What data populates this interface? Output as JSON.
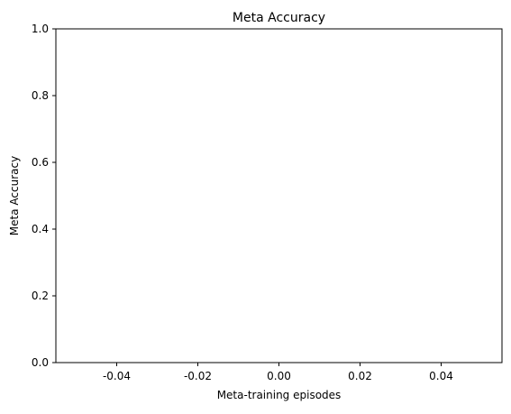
{
  "chart_data": {
    "type": "line",
    "title": "Meta Accuracy",
    "xlabel": "Meta-training episodes",
    "ylabel": "Meta Accuracy",
    "xlim": [
      -0.055,
      0.055
    ],
    "ylim": [
      0.0,
      1.0
    ],
    "xticks": [
      "-0.04",
      "-0.02",
      "0.00",
      "0.02",
      "0.04"
    ],
    "xtick_values": [
      -0.04,
      -0.02,
      0.0,
      0.02,
      0.04
    ],
    "yticks": [
      "0.0",
      "0.2",
      "0.4",
      "0.6",
      "0.8",
      "1.0"
    ],
    "ytick_values": [
      0.0,
      0.2,
      0.4,
      0.6,
      0.8,
      1.0
    ],
    "series": [],
    "grid": false,
    "legend": "none"
  }
}
